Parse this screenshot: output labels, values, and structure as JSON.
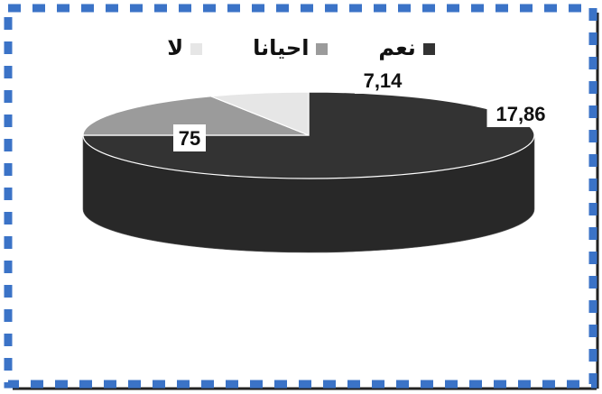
{
  "chart_data": {
    "type": "pie",
    "style": "3d",
    "title": "",
    "categories": [
      "نعم",
      "احيانا",
      "لا"
    ],
    "values": [
      75,
      17.86,
      7.14
    ],
    "value_labels": [
      "75",
      "17,86",
      "7,14"
    ],
    "colors": [
      "#333333",
      "#9b9b9b",
      "#e6e6e6"
    ],
    "legend_position": "top"
  },
  "legend": {
    "items": [
      {
        "label": "نعم",
        "color": "#333333"
      },
      {
        "label": "احيانا",
        "color": "#9b9b9b"
      },
      {
        "label": "لا",
        "color": "#e6e6e6"
      }
    ]
  },
  "frame": {
    "dash_color": "#3b73c7",
    "shadow_color": "#222222"
  }
}
